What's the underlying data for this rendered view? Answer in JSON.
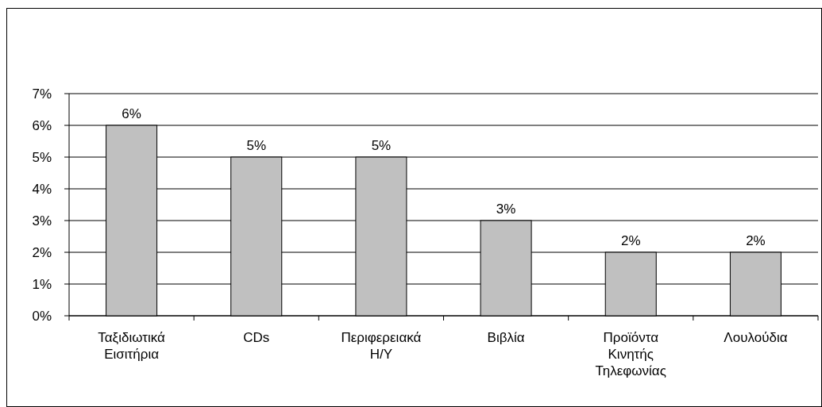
{
  "chart_data": {
    "type": "bar",
    "categories": [
      "Ταξιδιωτικά Εισιτήρια",
      "CDs",
      "Περιφερειακά Η/Υ",
      "Βιβλία",
      "Προϊόντα Κινητής Τηλεφωνίας",
      "Λουλούδια"
    ],
    "values": [
      6,
      5,
      5,
      3,
      2,
      2
    ],
    "value_labels": [
      "6%",
      "5%",
      "5%",
      "3%",
      "2%",
      "2%"
    ],
    "color": "#c0c0c0",
    "ylim": [
      0,
      7
    ],
    "yticks": [
      {
        "value": 0,
        "label": "0%"
      },
      {
        "value": 1,
        "label": "1%"
      },
      {
        "value": 2,
        "label": "2%"
      },
      {
        "value": 3,
        "label": "3%"
      },
      {
        "value": 4,
        "label": "4%"
      },
      {
        "value": 5,
        "label": "5%"
      },
      {
        "value": 6,
        "label": "6%"
      },
      {
        "value": 7,
        "label": "7%"
      }
    ],
    "grid": "y"
  }
}
